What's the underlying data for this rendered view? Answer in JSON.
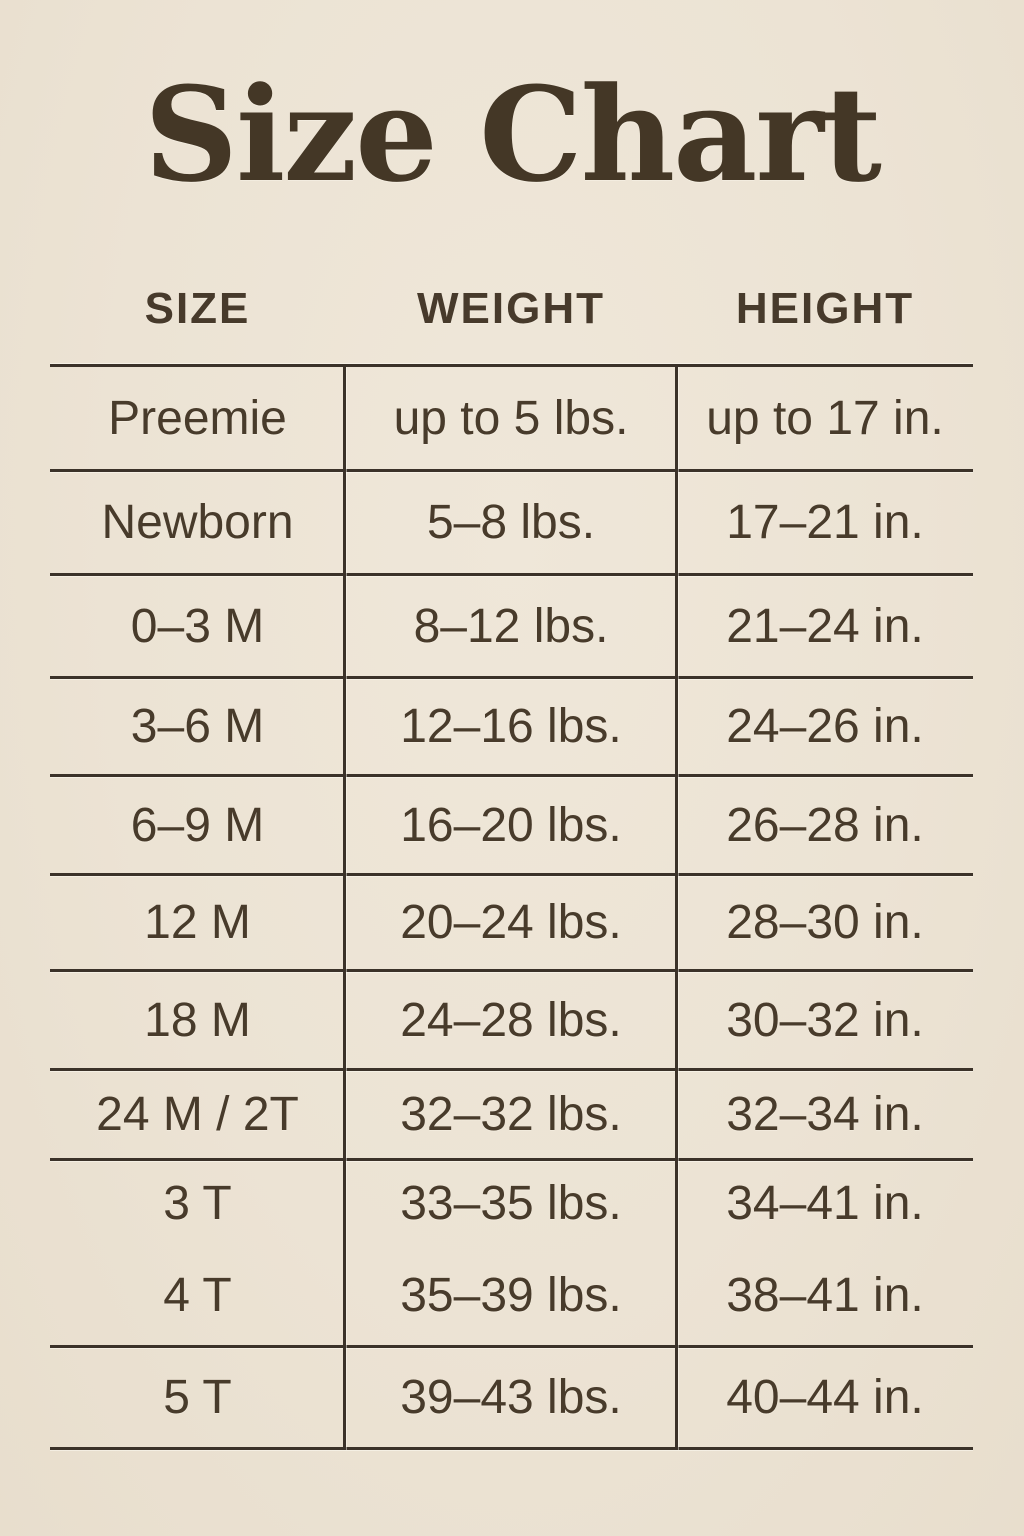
{
  "page": {
    "title": "Size Chart"
  },
  "chart_data": {
    "type": "table",
    "title": "Size Chart",
    "columns": [
      "SIZE",
      "WEIGHT",
      "HEIGHT"
    ],
    "rows": [
      [
        "Preemie",
        "up to 5 lbs.",
        "up to 17 in."
      ],
      [
        "Newborn",
        "5–8 lbs.",
        "17–21 in."
      ],
      [
        "0–3 M",
        "8–12 lbs.",
        "21–24 in."
      ],
      [
        "3–6 M",
        "12–16 lbs.",
        "24–26 in."
      ],
      [
        "6–9 M",
        "16–20 lbs.",
        "26–28 in."
      ],
      [
        "12 M",
        "20–24 lbs.",
        "28–30 in."
      ],
      [
        "18 M",
        "24–28 lbs.",
        "30–32 in."
      ],
      [
        "24 M / 2T",
        "32–32 lbs.",
        "32–34 in."
      ],
      [
        "3 T",
        "33–35 lbs.",
        "34–41 in."
      ],
      [
        "4 T",
        "35–39 lbs.",
        "38–41 in."
      ],
      [
        "5 T",
        "39–43 lbs.",
        "40–44 in."
      ]
    ]
  },
  "colors": {
    "background": "#ede4d6",
    "text": "#46392a",
    "line": "#3b3229"
  }
}
